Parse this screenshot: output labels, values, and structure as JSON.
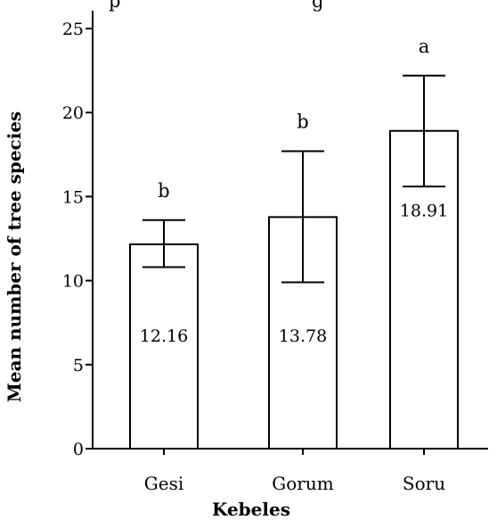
{
  "header_fragment": "p",
  "header_fragment_right": "g",
  "chart_data": {
    "type": "bar",
    "categories": [
      "Gesi",
      "Gorum",
      "Soru"
    ],
    "values": [
      12.16,
      13.78,
      18.91
    ],
    "error_upper": [
      13.6,
      17.7,
      22.2
    ],
    "error_lower": [
      10.8,
      9.9,
      15.6
    ],
    "significance_letters": [
      "b",
      "b",
      "a"
    ],
    "value_labels": [
      "12.16",
      "13.78",
      "18.91"
    ],
    "xlabel": "Kebeles",
    "ylabel": "Mean number of tree species",
    "ylim": [
      0,
      25
    ],
    "yticks": [
      0,
      5,
      10,
      15,
      20,
      25
    ],
    "ytick_labels": [
      "0",
      "5",
      "10",
      "15",
      "20",
      "25"
    ],
    "grid": false,
    "legend": "none",
    "bar_fill": "#ffffff",
    "bar_stroke": "#000000"
  }
}
